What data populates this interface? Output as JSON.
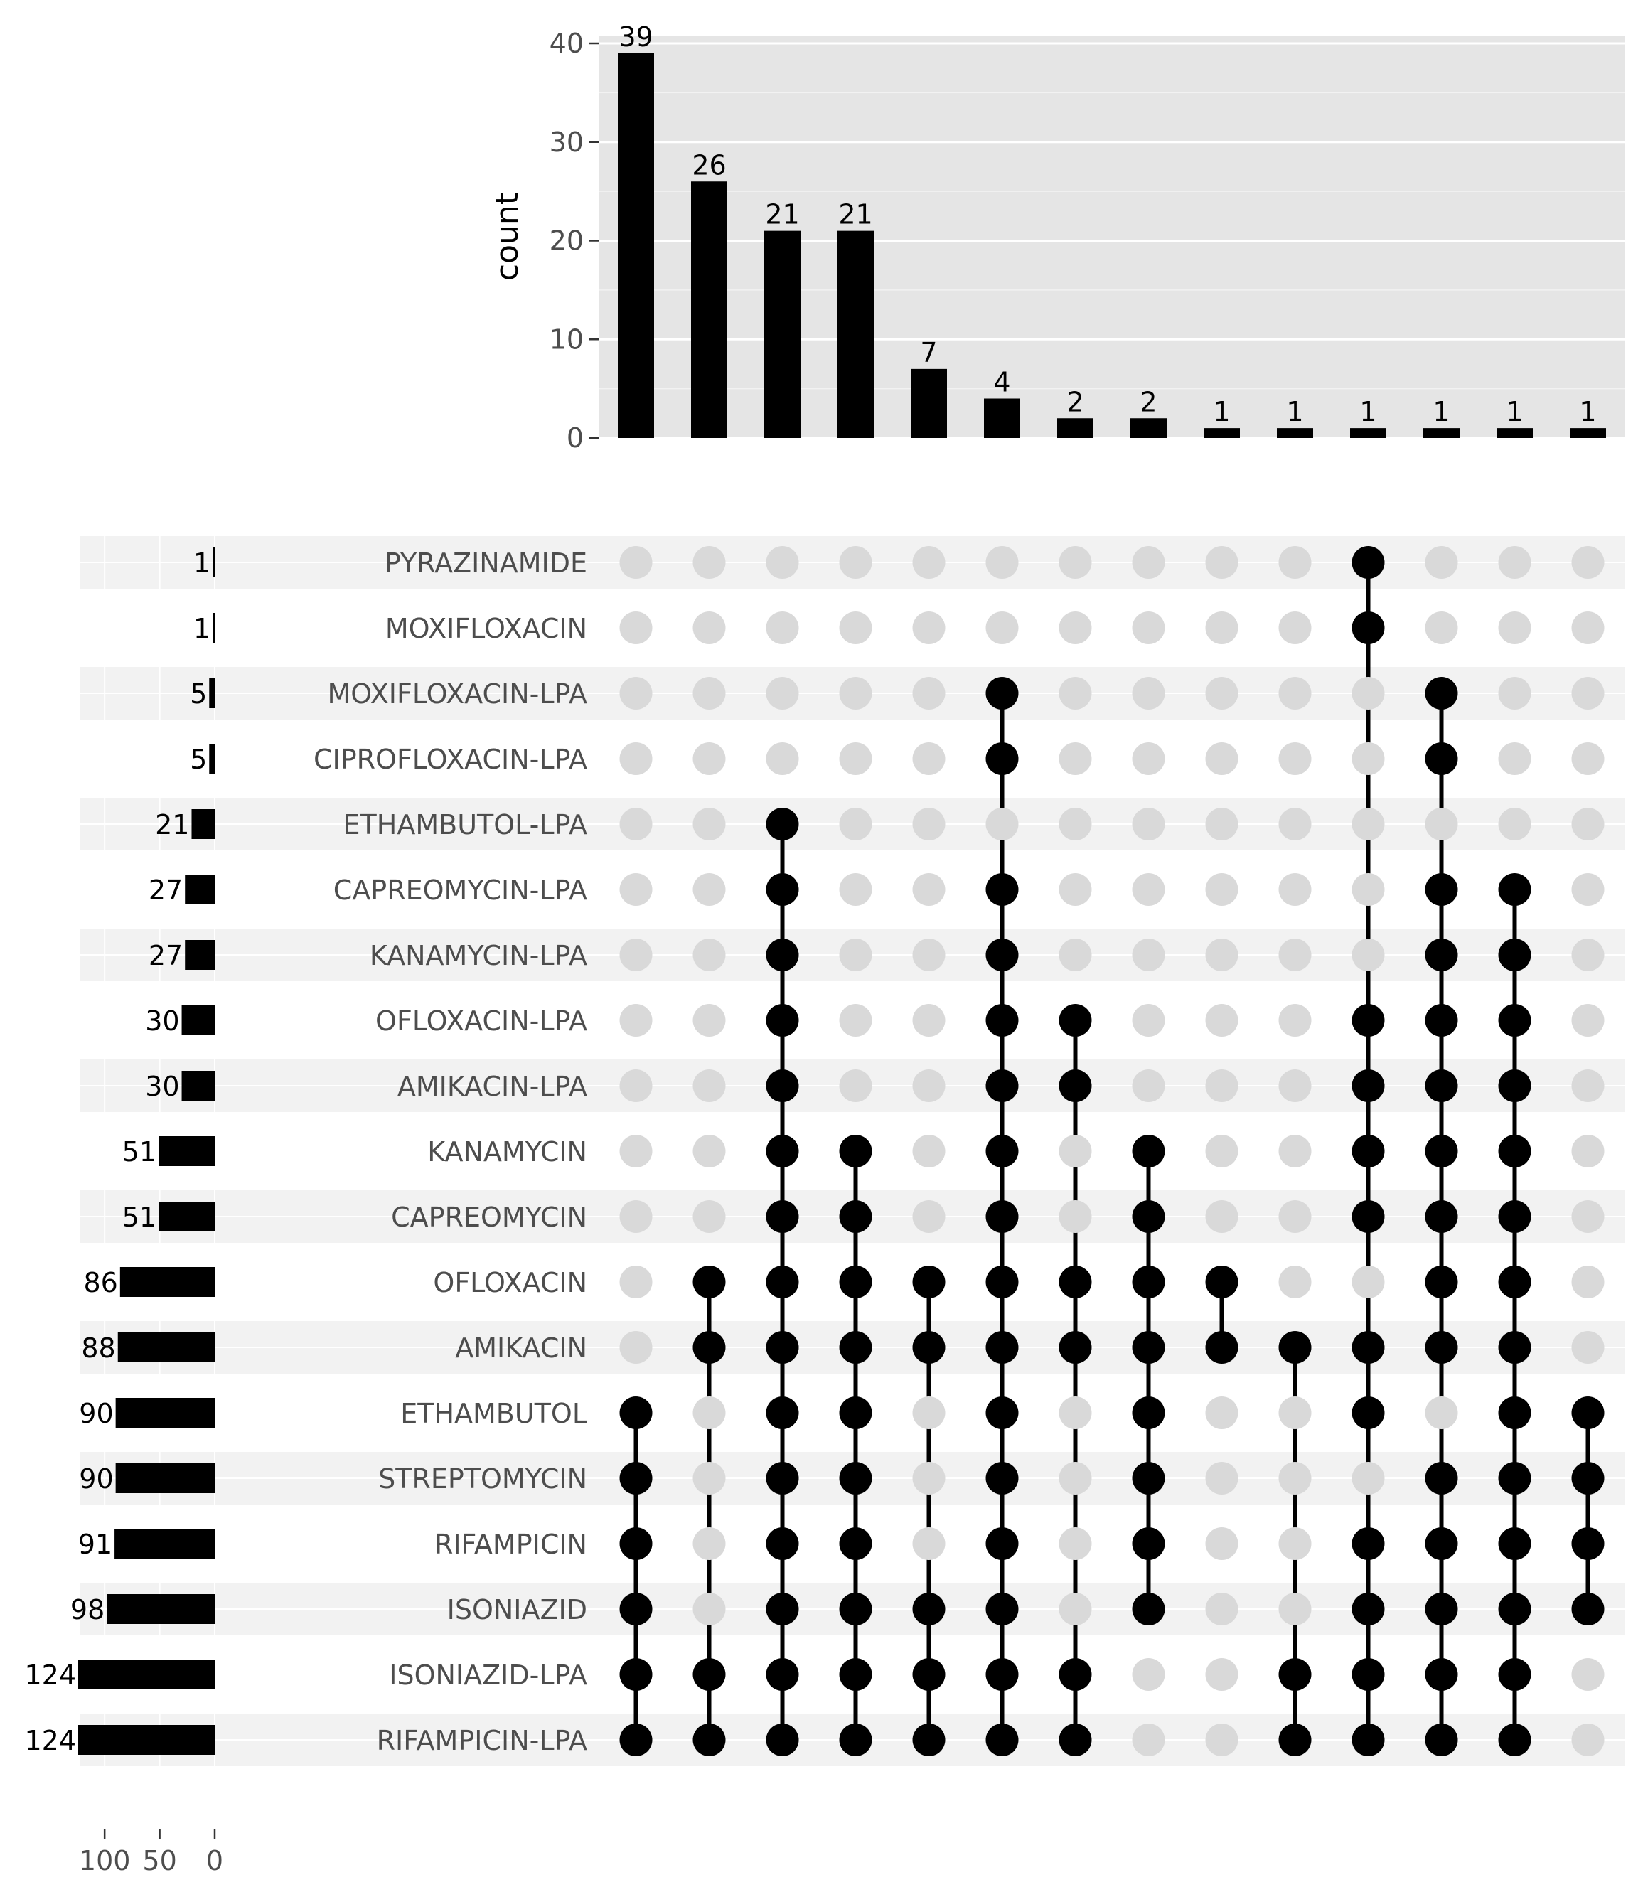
{
  "chart_data": {
    "type": "upset",
    "intersection_chart": {
      "type": "bar",
      "ylabel": "count",
      "ylim": [
        0,
        40
      ],
      "yticks": [
        0,
        10,
        20,
        30,
        40
      ],
      "values": [
        39,
        26,
        21,
        21,
        7,
        4,
        2,
        2,
        1,
        1,
        1,
        1,
        1,
        1
      ],
      "value_labels": [
        "39",
        "26",
        "21",
        "21",
        "7",
        "4",
        "2",
        "2",
        "1",
        "1",
        "1",
        "1",
        "1",
        "1"
      ],
      "bar_color": "#000000",
      "panel_color": "#e5e5e5",
      "grid": true
    },
    "sets": [
      {
        "name": "PYRAZINAMIDE",
        "size": 1,
        "size_label": "1"
      },
      {
        "name": "MOXIFLOXACIN",
        "size": 1,
        "size_label": "1"
      },
      {
        "name": "MOXIFLOXACIN-LPA",
        "size": 5,
        "size_label": "5"
      },
      {
        "name": "CIPROFLOXACIN-LPA",
        "size": 5,
        "size_label": "5"
      },
      {
        "name": "ETHAMBUTOL-LPA",
        "size": 21,
        "size_label": "21"
      },
      {
        "name": "CAPREOMYCIN-LPA",
        "size": 27,
        "size_label": "27"
      },
      {
        "name": "KANAMYCIN-LPA",
        "size": 27,
        "size_label": "27"
      },
      {
        "name": "OFLOXACIN-LPA",
        "size": 30,
        "size_label": "30"
      },
      {
        "name": "AMIKACIN-LPA",
        "size": 30,
        "size_label": "30"
      },
      {
        "name": "KANAMYCIN",
        "size": 51,
        "size_label": "51"
      },
      {
        "name": "CAPREOMYCIN",
        "size": 51,
        "size_label": "51"
      },
      {
        "name": "OFLOXACIN",
        "size": 86,
        "size_label": "86"
      },
      {
        "name": "AMIKACIN",
        "size": 88,
        "size_label": "88"
      },
      {
        "name": "ETHAMBUTOL",
        "size": 90,
        "size_label": "90"
      },
      {
        "name": "STREPTOMYCIN",
        "size": 90,
        "size_label": "90"
      },
      {
        "name": "RIFAMPICIN",
        "size": 91,
        "size_label": "91"
      },
      {
        "name": "ISONIAZID",
        "size": 98,
        "size_label": "98"
      },
      {
        "name": "ISONIAZID-LPA",
        "size": 124,
        "size_label": "124"
      },
      {
        "name": "RIFAMPICIN-LPA",
        "size": 124,
        "size_label": "124"
      }
    ],
    "set_size_axis": {
      "ticks": [
        100,
        50,
        0
      ],
      "tick_labels": [
        "100",
        "50",
        "0"
      ],
      "max": 124
    },
    "intersections": [
      [
        "ETHAMBUTOL",
        "STREPTOMYCIN",
        "RIFAMPICIN",
        "ISONIAZID",
        "ISONIAZID-LPA",
        "RIFAMPICIN-LPA"
      ],
      [
        "OFLOXACIN",
        "AMIKACIN",
        "ISONIAZID-LPA",
        "RIFAMPICIN-LPA"
      ],
      [
        "ETHAMBUTOL-LPA",
        "CAPREOMYCIN-LPA",
        "KANAMYCIN-LPA",
        "OFLOXACIN-LPA",
        "AMIKACIN-LPA",
        "KANAMYCIN",
        "CAPREOMYCIN",
        "OFLOXACIN",
        "AMIKACIN",
        "ETHAMBUTOL",
        "STREPTOMYCIN",
        "RIFAMPICIN",
        "ISONIAZID",
        "ISONIAZID-LPA",
        "RIFAMPICIN-LPA"
      ],
      [
        "KANAMYCIN",
        "CAPREOMYCIN",
        "OFLOXACIN",
        "AMIKACIN",
        "ETHAMBUTOL",
        "STREPTOMYCIN",
        "RIFAMPICIN",
        "ISONIAZID",
        "ISONIAZID-LPA",
        "RIFAMPICIN-LPA"
      ],
      [
        "OFLOXACIN",
        "AMIKACIN",
        "ISONIAZID",
        "ISONIAZID-LPA",
        "RIFAMPICIN-LPA"
      ],
      [
        "MOXIFLOXACIN-LPA",
        "CIPROFLOXACIN-LPA",
        "CAPREOMYCIN-LPA",
        "KANAMYCIN-LPA",
        "OFLOXACIN-LPA",
        "AMIKACIN-LPA",
        "KANAMYCIN",
        "CAPREOMYCIN",
        "OFLOXACIN",
        "AMIKACIN",
        "ETHAMBUTOL",
        "STREPTOMYCIN",
        "RIFAMPICIN",
        "ISONIAZID",
        "ISONIAZID-LPA",
        "RIFAMPICIN-LPA"
      ],
      [
        "OFLOXACIN-LPA",
        "AMIKACIN-LPA",
        "OFLOXACIN",
        "AMIKACIN",
        "ISONIAZID-LPA",
        "RIFAMPICIN-LPA"
      ],
      [
        "KANAMYCIN",
        "CAPREOMYCIN",
        "OFLOXACIN",
        "AMIKACIN",
        "ETHAMBUTOL",
        "STREPTOMYCIN",
        "RIFAMPICIN",
        "ISONIAZID"
      ],
      [
        "OFLOXACIN",
        "AMIKACIN"
      ],
      [
        "AMIKACIN",
        "ISONIAZID-LPA",
        "RIFAMPICIN-LPA"
      ],
      [
        "PYRAZINAMIDE",
        "MOXIFLOXACIN",
        "OFLOXACIN-LPA",
        "AMIKACIN-LPA",
        "KANAMYCIN",
        "CAPREOMYCIN",
        "AMIKACIN",
        "ETHAMBUTOL",
        "RIFAMPICIN",
        "ISONIAZID",
        "ISONIAZID-LPA",
        "RIFAMPICIN-LPA"
      ],
      [
        "MOXIFLOXACIN-LPA",
        "CIPROFLOXACIN-LPA",
        "CAPREOMYCIN-LPA",
        "KANAMYCIN-LPA",
        "OFLOXACIN-LPA",
        "AMIKACIN-LPA",
        "KANAMYCIN",
        "CAPREOMYCIN",
        "OFLOXACIN",
        "AMIKACIN",
        "STREPTOMYCIN",
        "RIFAMPICIN",
        "ISONIAZID",
        "ISONIAZID-LPA",
        "RIFAMPICIN-LPA"
      ],
      [
        "CAPREOMYCIN-LPA",
        "KANAMYCIN-LPA",
        "OFLOXACIN-LPA",
        "AMIKACIN-LPA",
        "KANAMYCIN",
        "CAPREOMYCIN",
        "OFLOXACIN",
        "AMIKACIN",
        "ETHAMBUTOL",
        "STREPTOMYCIN",
        "RIFAMPICIN",
        "ISONIAZID",
        "ISONIAZID-LPA",
        "RIFAMPICIN-LPA"
      ],
      [
        "ETHAMBUTOL",
        "STREPTOMYCIN",
        "RIFAMPICIN",
        "ISONIAZID"
      ]
    ],
    "colors": {
      "active_dot": "#000000",
      "inactive_dot": "#d9d9d9",
      "stripe": "#f2f2f2",
      "tick_text": "#4d4d4d",
      "label_text": "#000000"
    }
  }
}
